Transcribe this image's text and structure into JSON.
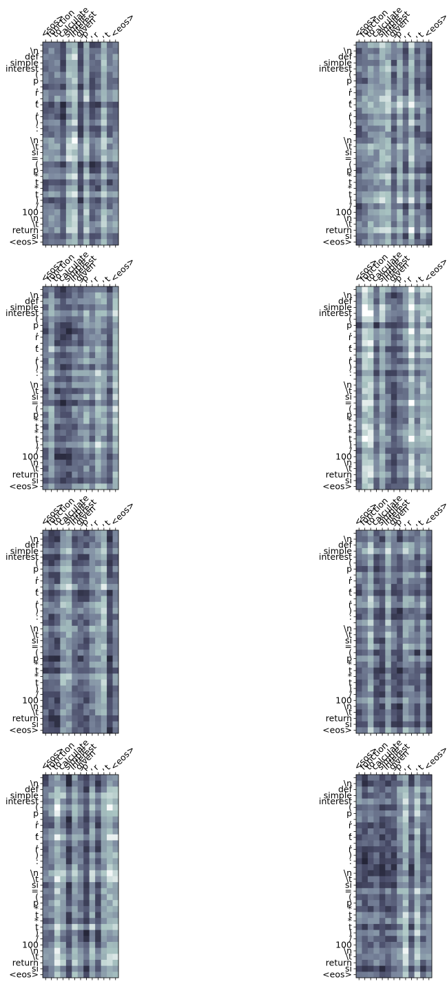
{
  "chart_data": {
    "type": "heatmap",
    "layout": {
      "rows": 4,
      "cols": 2
    },
    "colormap": [
      "#1c1c2c",
      "#4a4d6a",
      "#7d8aa0",
      "#a9c4c2",
      "#ffffff"
    ],
    "x_tokens": [
      "<sos>",
      "function",
      "to",
      "calculate",
      "simple",
      "interest",
      "given",
      "p",
      ",",
      "r",
      ",",
      "t",
      "<eos>"
    ],
    "y_tokens": [
      "",
      "\\n",
      "def",
      "simple",
      "interest",
      "(",
      "p",
      ",",
      "r",
      ",",
      "t",
      ",",
      "r",
      ")",
      ":",
      "",
      "\\n",
      "\\t",
      "si",
      "=",
      "(",
      "p",
      "*",
      "t",
      "*",
      "t",
      ")",
      "/",
      "100",
      "\\n",
      "\\t",
      "return",
      "si",
      "<eos>"
    ],
    "panels": [
      {
        "id": "head-1",
        "row": 0,
        "col": 0,
        "seed": 11
      },
      {
        "id": "head-2",
        "row": 0,
        "col": 1,
        "seed": 23
      },
      {
        "id": "head-3",
        "row": 1,
        "col": 0,
        "seed": 37
      },
      {
        "id": "head-4",
        "row": 1,
        "col": 1,
        "seed": 41
      },
      {
        "id": "head-5",
        "row": 2,
        "col": 0,
        "seed": 53
      },
      {
        "id": "head-6",
        "row": 2,
        "col": 1,
        "seed": 67
      },
      {
        "id": "head-7",
        "row": 3,
        "col": 0,
        "seed": 79
      },
      {
        "id": "head-8",
        "row": 3,
        "col": 1,
        "seed": 97
      }
    ],
    "xlabel": "",
    "ylabel": "",
    "title": ""
  }
}
